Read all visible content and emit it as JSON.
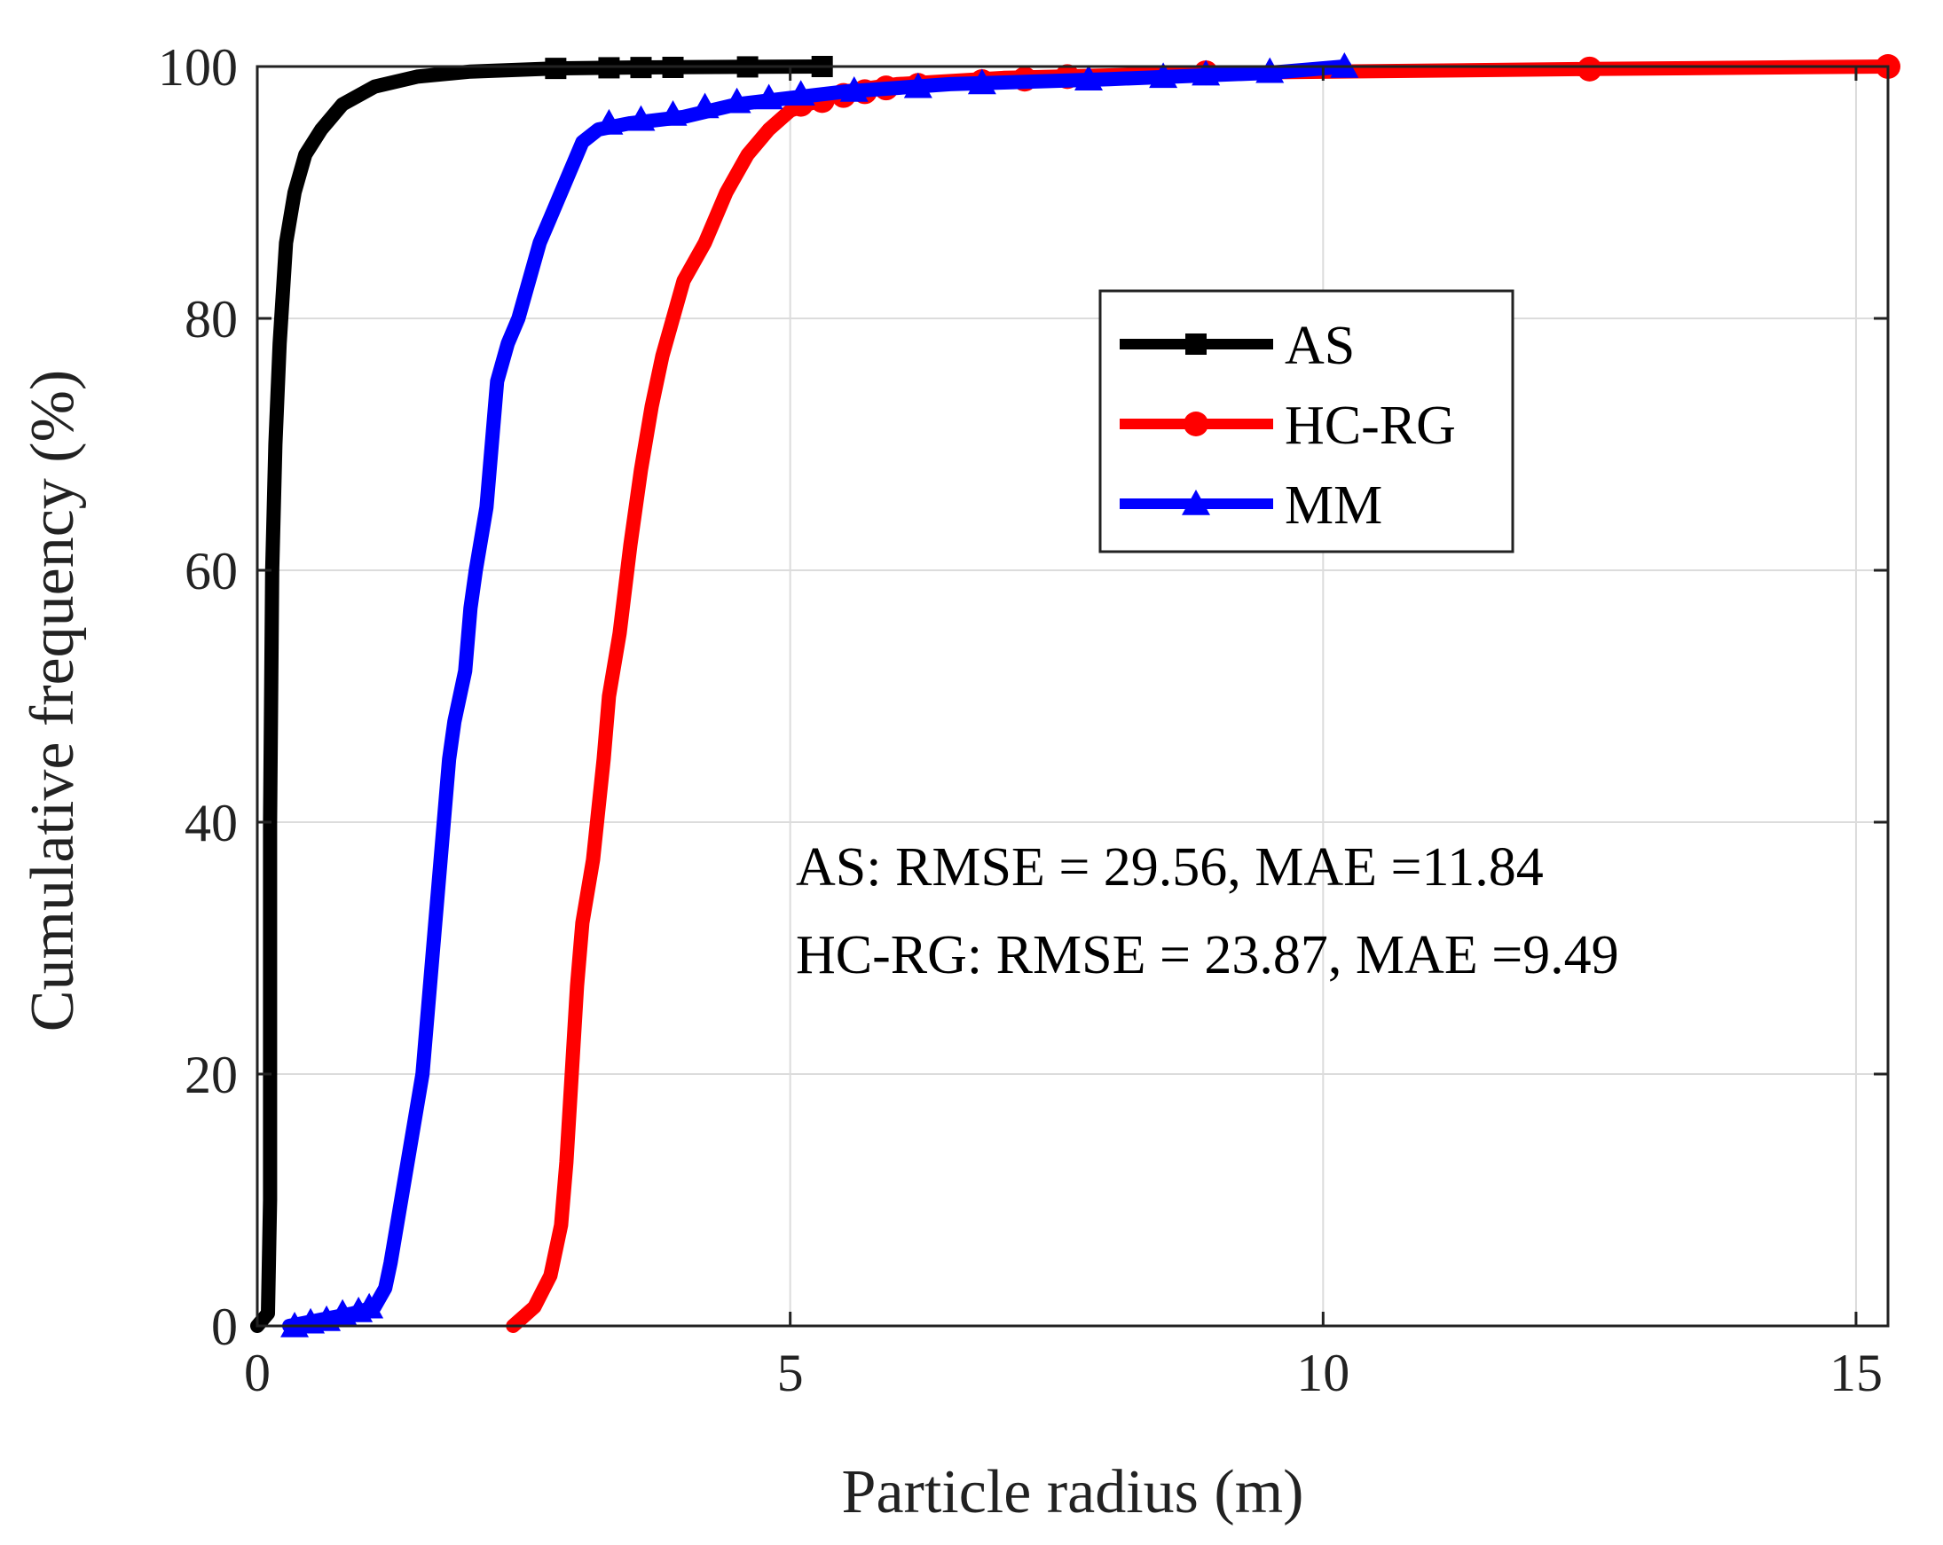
{
  "chart_data": {
    "type": "line",
    "title": "",
    "xlabel": "Particle radius (m)",
    "ylabel": "Cumulative frequency (%)",
    "xlim": [
      0,
      15.3
    ],
    "ylim": [
      0,
      100
    ],
    "grid": true,
    "legend_position": "upper-center-right",
    "xticks": [
      0,
      5,
      10,
      15
    ],
    "xtick_labels": [
      "0",
      "5",
      "10",
      "15"
    ],
    "yticks": [
      0,
      20,
      40,
      60,
      80,
      100
    ],
    "ytick_labels": [
      "0",
      "20",
      "40",
      "60",
      "80",
      "100"
    ],
    "series": [
      {
        "name": "AS",
        "color": "#000000",
        "marker": "square",
        "points": [
          [
            0.0,
            0
          ],
          [
            0.1,
            1
          ],
          [
            0.12,
            10
          ],
          [
            0.12,
            40
          ],
          [
            0.14,
            60
          ],
          [
            0.17,
            70
          ],
          [
            0.21,
            78
          ],
          [
            0.27,
            86
          ],
          [
            0.35,
            90
          ],
          [
            0.45,
            93
          ],
          [
            0.6,
            95
          ],
          [
            0.8,
            97
          ],
          [
            1.1,
            98.4
          ],
          [
            1.5,
            99.2
          ],
          [
            2.0,
            99.6
          ],
          [
            2.8,
            99.85
          ],
          [
            3.5,
            99.92
          ],
          [
            4.5,
            99.97
          ],
          [
            5.3,
            100
          ]
        ],
        "markers": [
          [
            2.8,
            99.85
          ],
          [
            3.3,
            99.9
          ],
          [
            3.6,
            99.92
          ],
          [
            3.9,
            99.93
          ],
          [
            4.6,
            99.97
          ],
          [
            5.3,
            100
          ]
        ]
      },
      {
        "name": "HC-RG",
        "color": "#ff0000",
        "marker": "circle",
        "points": [
          [
            2.4,
            0
          ],
          [
            2.6,
            1.5
          ],
          [
            2.75,
            4
          ],
          [
            2.85,
            8
          ],
          [
            2.9,
            13
          ],
          [
            2.95,
            20
          ],
          [
            3.0,
            27
          ],
          [
            3.05,
            32
          ],
          [
            3.15,
            37
          ],
          [
            3.25,
            45
          ],
          [
            3.3,
            50
          ],
          [
            3.4,
            55
          ],
          [
            3.5,
            62
          ],
          [
            3.6,
            68
          ],
          [
            3.7,
            73
          ],
          [
            3.8,
            77
          ],
          [
            3.9,
            80
          ],
          [
            4.0,
            83
          ],
          [
            4.2,
            86
          ],
          [
            4.4,
            90
          ],
          [
            4.6,
            93
          ],
          [
            4.8,
            95
          ],
          [
            5.0,
            96.5
          ],
          [
            5.5,
            98
          ],
          [
            6.0,
            98.6
          ],
          [
            7.0,
            99.1
          ],
          [
            9.0,
            99.5
          ],
          [
            12.5,
            99.8
          ],
          [
            15.3,
            100
          ]
        ],
        "markers": [
          [
            5.1,
            97
          ],
          [
            5.3,
            97.3
          ],
          [
            5.5,
            97.7
          ],
          [
            5.7,
            98
          ],
          [
            5.9,
            98.3
          ],
          [
            6.2,
            98.5
          ],
          [
            6.8,
            98.8
          ],
          [
            7.2,
            99
          ],
          [
            7.6,
            99.2
          ],
          [
            8.9,
            99.5
          ],
          [
            12.5,
            99.8
          ],
          [
            15.3,
            100
          ]
        ]
      },
      {
        "name": "MM",
        "color": "#0000ff",
        "marker": "triangle",
        "points": [
          [
            0.3,
            0
          ],
          [
            0.6,
            0.5
          ],
          [
            0.9,
            1.0
          ],
          [
            1.1,
            1.5
          ],
          [
            1.2,
            3
          ],
          [
            1.25,
            5
          ],
          [
            1.35,
            10
          ],
          [
            1.45,
            15
          ],
          [
            1.55,
            20
          ],
          [
            1.6,
            25
          ],
          [
            1.65,
            30
          ],
          [
            1.7,
            35
          ],
          [
            1.75,
            40
          ],
          [
            1.8,
            45
          ],
          [
            1.85,
            48
          ],
          [
            1.95,
            52
          ],
          [
            2.0,
            57
          ],
          [
            2.05,
            60
          ],
          [
            2.15,
            65
          ],
          [
            2.2,
            70
          ],
          [
            2.25,
            75
          ],
          [
            2.35,
            78
          ],
          [
            2.45,
            80
          ],
          [
            2.55,
            83
          ],
          [
            2.65,
            86
          ],
          [
            2.75,
            88
          ],
          [
            2.85,
            90
          ],
          [
            2.95,
            92
          ],
          [
            3.05,
            94
          ],
          [
            3.2,
            95
          ],
          [
            3.5,
            95.5
          ],
          [
            4.0,
            96
          ],
          [
            4.5,
            97
          ],
          [
            5.0,
            97.5
          ],
          [
            5.5,
            98
          ],
          [
            6.5,
            98.6
          ],
          [
            8.0,
            99
          ],
          [
            9.5,
            99.5
          ],
          [
            10.2,
            100
          ]
        ],
        "markers": [
          [
            0.35,
            0
          ],
          [
            0.5,
            0.3
          ],
          [
            0.65,
            0.5
          ],
          [
            0.8,
            1.0
          ],
          [
            0.95,
            1.2
          ],
          [
            1.05,
            1.5
          ],
          [
            3.3,
            95.5
          ],
          [
            3.6,
            95.8
          ],
          [
            3.9,
            96.2
          ],
          [
            4.2,
            96.8
          ],
          [
            4.5,
            97.2
          ],
          [
            4.8,
            97.5
          ],
          [
            5.1,
            97.8
          ],
          [
            5.6,
            98.1
          ],
          [
            6.2,
            98.4
          ],
          [
            6.8,
            98.7
          ],
          [
            7.8,
            99
          ],
          [
            8.5,
            99.2
          ],
          [
            8.9,
            99.4
          ],
          [
            9.5,
            99.6
          ],
          [
            10.2,
            100
          ]
        ]
      }
    ],
    "annotations": [
      "AS: RMSE = 29.56, MAE =11.84",
      "HC-RG: RMSE = 23.87, MAE =9.49"
    ]
  }
}
